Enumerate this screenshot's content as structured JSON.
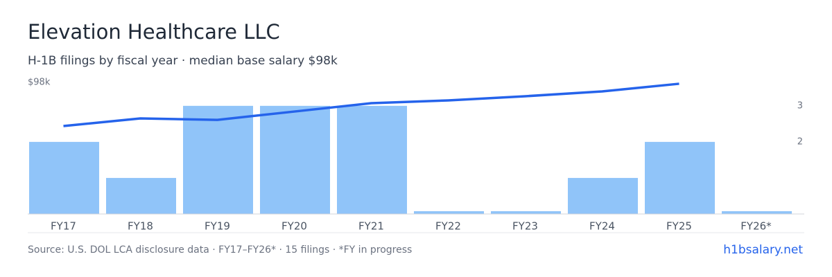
{
  "chart_data": {
    "type": "bar",
    "title": "Elevation Healthcare LLC",
    "subtitle": "H-1B filings by fiscal year · median base salary $98k",
    "categories": [
      "FY17",
      "FY18",
      "FY19",
      "FY20",
      "FY21",
      "FY22",
      "FY23",
      "FY24",
      "FY25",
      "FY26*"
    ],
    "series": [
      {
        "type": "bar",
        "axis": "y2",
        "color": "#90c4f9",
        "values": [
          2,
          1,
          3,
          3,
          3,
          0,
          0,
          1,
          2,
          0
        ]
      },
      {
        "type": "line",
        "color": "#2563eb",
        "values": [
          65.5,
          71.2,
          70.1,
          76.3,
          82.5,
          84.6,
          87.7,
          91.3,
          97.0,
          null
        ]
      }
    ],
    "ylim": [
      0,
      98
    ],
    "yticks": [
      {
        "value": 98,
        "label": "$98k"
      }
    ],
    "y2lim": [
      0,
      3.65
    ],
    "y2ticks": [
      2,
      3
    ],
    "source": "Source: U.S. DOL LCA disclosure data · FY17–FY26* · 15 filings · *FY in progress",
    "site": "h1bsalary.net"
  }
}
